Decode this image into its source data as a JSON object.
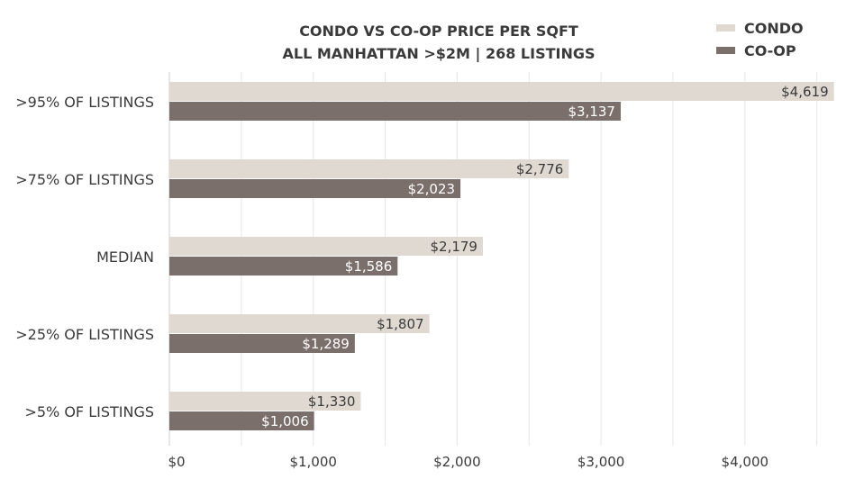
{
  "chart_data": {
    "type": "bar",
    "orientation": "horizontal",
    "title": [
      "CONDO VS CO-OP PRICE PER SQFT",
      "ALL MANHATTAN >$2M | 268 LISTINGS"
    ],
    "categories": [
      ">95% OF LISTINGS",
      ">75% OF LISTINGS",
      "MEDIAN",
      ">25% OF LISTINGS",
      ">5% OF LISTINGS"
    ],
    "series": [
      {
        "name": "CONDO",
        "color": "#e0d9d2",
        "label_color": "#3a3a3a",
        "values": [
          4619,
          2776,
          2179,
          1807,
          1330
        ],
        "labels": [
          "$4,619",
          "$2,776",
          "$2,179",
          "$1,807",
          "$1,330"
        ]
      },
      {
        "name": "CO-OP",
        "color": "#7b6f6b",
        "label_color": "#ffffff",
        "values": [
          3137,
          2023,
          1586,
          1289,
          1006
        ],
        "labels": [
          "$3,137",
          "$2,023",
          "$1,586",
          "$1,289",
          "$1,006"
        ]
      }
    ],
    "xlim": [
      0,
      4650
    ],
    "xticks": [
      0,
      1000,
      2000,
      3000,
      4000
    ],
    "xtick_labels": [
      "$0",
      "$1,000",
      "$2,000",
      "$3,000",
      "$4,000"
    ],
    "grid_step": 500,
    "grid": true,
    "legend_position": "top-right",
    "xlabel": "",
    "ylabel": ""
  }
}
